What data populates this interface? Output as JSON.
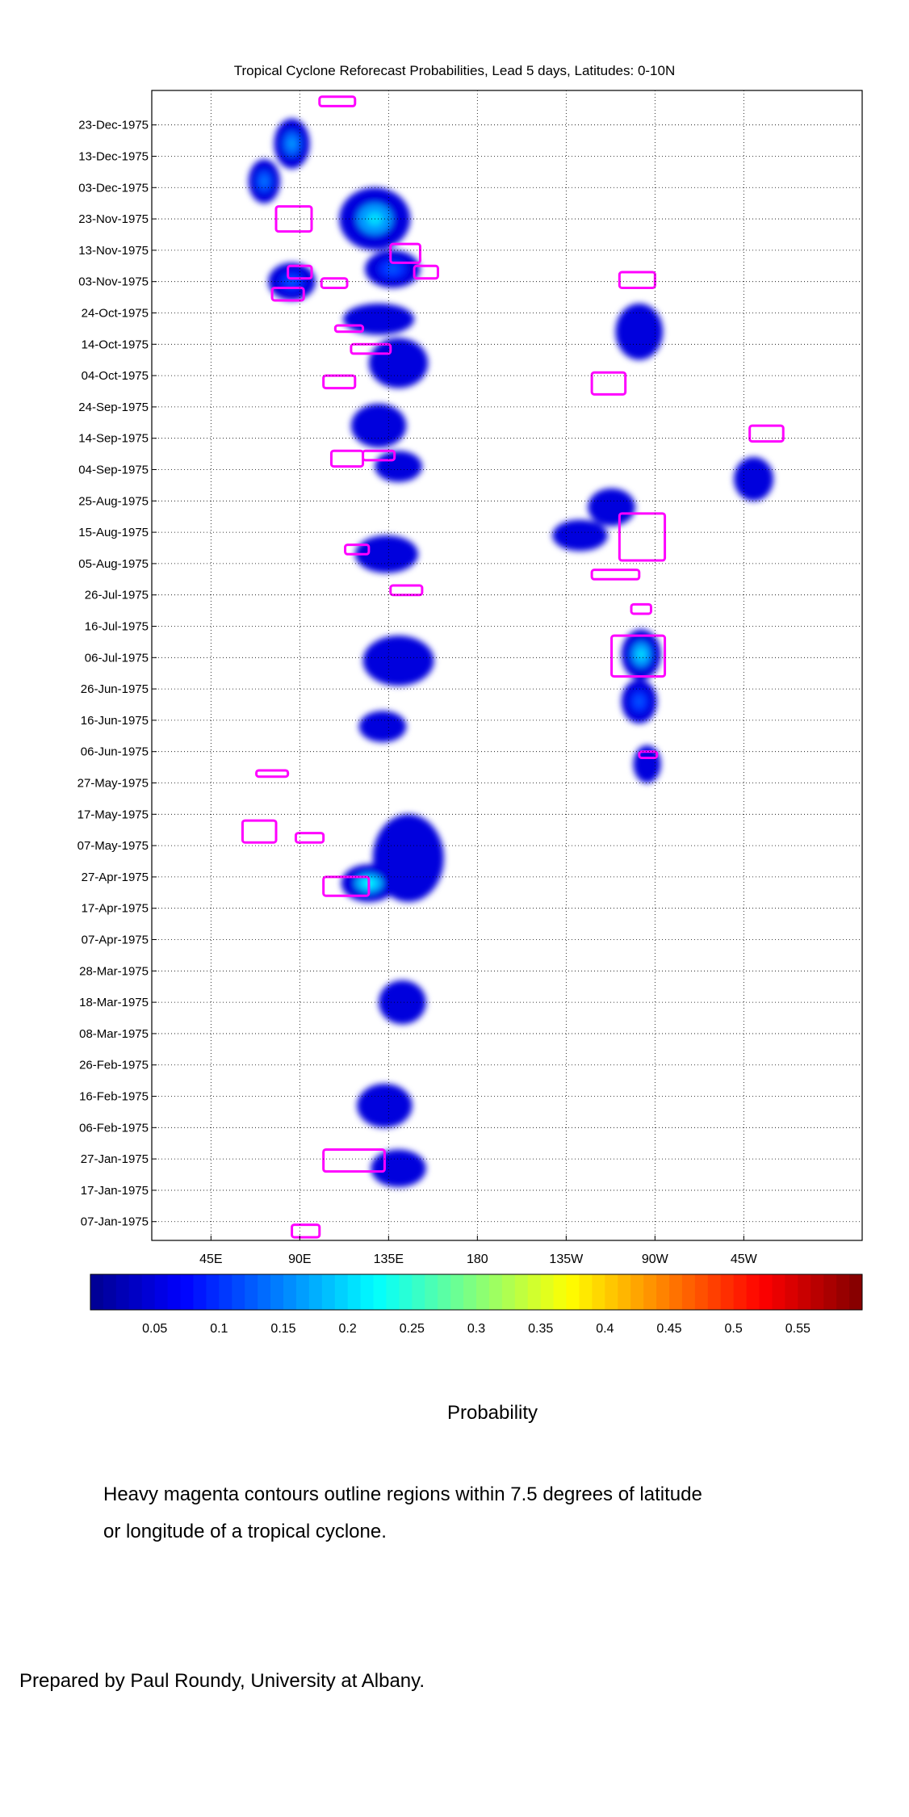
{
  "chart_data": {
    "type": "heatmap",
    "title": "Tropical Cyclone Reforecast Probabilities, Lead 5 days, Latitudes: 0-10N",
    "x_ticks": [
      "45E",
      "90E",
      "135E",
      "180",
      "135W",
      "90W",
      "45W"
    ],
    "y_ticks": [
      "23-Dec-1975",
      "13-Dec-1975",
      "03-Dec-1975",
      "23-Nov-1975",
      "13-Nov-1975",
      "03-Nov-1975",
      "24-Oct-1975",
      "14-Oct-1975",
      "04-Oct-1975",
      "24-Sep-1975",
      "14-Sep-1975",
      "04-Sep-1975",
      "25-Aug-1975",
      "15-Aug-1975",
      "05-Aug-1975",
      "26-Jul-1975",
      "16-Jul-1975",
      "06-Jul-1975",
      "26-Jun-1975",
      "16-Jun-1975",
      "06-Jun-1975",
      "27-May-1975",
      "17-May-1975",
      "07-May-1975",
      "27-Apr-1975",
      "17-Apr-1975",
      "07-Apr-1975",
      "28-Mar-1975",
      "18-Mar-1975",
      "08-Mar-1975",
      "26-Feb-1975",
      "16-Feb-1975",
      "06-Feb-1975",
      "27-Jan-1975",
      "17-Jan-1975",
      "07-Jan-1975"
    ],
    "grid": true,
    "colorbar": {
      "label": "Probability",
      "ticks": [
        "0.05",
        "0.1",
        "0.15",
        "0.2",
        "0.25",
        "0.3",
        "0.35",
        "0.4",
        "0.45",
        "0.5",
        "0.55"
      ],
      "range": [
        0,
        0.6
      ]
    },
    "probability_blobs": [
      {
        "lon": 86,
        "day": 350,
        "dlon": 9,
        "dday": 8,
        "p": 0.16
      },
      {
        "lon": 72,
        "day": 338,
        "dlon": 8,
        "dday": 7,
        "p": 0.14
      },
      {
        "lon": 86,
        "day": 306,
        "dlon": 12,
        "dday": 6,
        "p": 0.12
      },
      {
        "lon": 128,
        "day": 326,
        "dlon": 18,
        "dday": 10,
        "p": 0.2
      },
      {
        "lon": 137,
        "day": 310,
        "dlon": 14,
        "dday": 6,
        "p": 0.12
      },
      {
        "lon": 130,
        "day": 294,
        "dlon": 18,
        "dday": 5,
        "p": 0.08
      },
      {
        "lon": 140,
        "day": 280,
        "dlon": 15,
        "dday": 8,
        "p": 0.07
      },
      {
        "lon": 130,
        "day": 260,
        "dlon": 14,
        "dday": 7,
        "p": 0.07
      },
      {
        "lon": 140,
        "day": 247,
        "dlon": 12,
        "dday": 5,
        "p": 0.06
      },
      {
        "lon": 134,
        "day": 219,
        "dlon": 16,
        "dday": 6,
        "p": 0.07
      },
      {
        "lon": 140,
        "day": 185,
        "dlon": 18,
        "dday": 8,
        "p": 0.09
      },
      {
        "lon": 132,
        "day": 164,
        "dlon": 12,
        "dday": 5,
        "p": 0.06
      },
      {
        "lon": 145,
        "day": 122,
        "dlon": 18,
        "dday": 14,
        "p": 0.1
      },
      {
        "lon": 125,
        "day": 114,
        "dlon": 14,
        "dday": 6,
        "p": 0.22
      },
      {
        "lon": 142,
        "day": 76,
        "dlon": 12,
        "dday": 7,
        "p": 0.07
      },
      {
        "lon": 133,
        "day": 43,
        "dlon": 14,
        "dday": 7,
        "p": 0.07
      },
      {
        "lon": 140,
        "day": 23,
        "dlon": 14,
        "dday": 6,
        "p": 0.08
      },
      {
        "lon": 262,
        "day": 290,
        "dlon": 12,
        "dday": 9,
        "p": 0.08
      },
      {
        "lon": 248,
        "day": 234,
        "dlon": 12,
        "dday": 6,
        "p": 0.07
      },
      {
        "lon": 232,
        "day": 225,
        "dlon": 14,
        "dday": 5,
        "p": 0.08
      },
      {
        "lon": 263,
        "day": 187,
        "dlon": 10,
        "dday": 8,
        "p": 0.2
      },
      {
        "lon": 262,
        "day": 172,
        "dlon": 9,
        "dday": 7,
        "p": 0.12
      },
      {
        "lon": 266,
        "day": 152,
        "dlon": 7,
        "dday": 6,
        "p": 0.07
      },
      {
        "lon": 320,
        "day": 243,
        "dlon": 10,
        "dday": 7,
        "p": 0.06
      }
    ],
    "cyclone_contours": [
      {
        "lon": [
          100,
          118
        ],
        "day": [
          362,
          365
        ]
      },
      {
        "lon": [
          78,
          96
        ],
        "day": [
          322,
          330
        ]
      },
      {
        "lon": [
          136,
          151
        ],
        "day": [
          312,
          318
        ]
      },
      {
        "lon": [
          84,
          96
        ],
        "day": [
          307,
          311
        ]
      },
      {
        "lon": [
          101,
          114
        ],
        "day": [
          304,
          307
        ]
      },
      {
        "lon": [
          148,
          160
        ],
        "day": [
          307,
          311
        ]
      },
      {
        "lon": [
          76,
          92
        ],
        "day": [
          300,
          304
        ]
      },
      {
        "lon": [
          252,
          270
        ],
        "day": [
          304,
          309
        ]
      },
      {
        "lon": [
          108,
          122
        ],
        "day": [
          290,
          292
        ]
      },
      {
        "lon": [
          116,
          136
        ],
        "day": [
          283,
          286
        ]
      },
      {
        "lon": [
          102,
          118
        ],
        "day": [
          272,
          276
        ]
      },
      {
        "lon": [
          238,
          255
        ],
        "day": [
          270,
          277
        ]
      },
      {
        "lon": [
          318,
          335
        ],
        "day": [
          255,
          260
        ]
      },
      {
        "lon": [
          106,
          122
        ],
        "day": [
          247,
          252
        ]
      },
      {
        "lon": [
          122,
          138
        ],
        "day": [
          249,
          252
        ]
      },
      {
        "lon": [
          113,
          125
        ],
        "day": [
          219,
          222
        ]
      },
      {
        "lon": [
          252,
          275
        ],
        "day": [
          217,
          232
        ]
      },
      {
        "lon": [
          238,
          262
        ],
        "day": [
          211,
          214
        ]
      },
      {
        "lon": [
          136,
          152
        ],
        "day": [
          206,
          209
        ]
      },
      {
        "lon": [
          258,
          268
        ],
        "day": [
          200,
          203
        ]
      },
      {
        "lon": [
          248,
          275
        ],
        "day": [
          180,
          193
        ]
      },
      {
        "lon": [
          262,
          271
        ],
        "day": [
          154,
          156
        ]
      },
      {
        "lon": [
          68,
          84
        ],
        "day": [
          148,
          150
        ]
      },
      {
        "lon": [
          61,
          78
        ],
        "day": [
          127,
          134
        ]
      },
      {
        "lon": [
          88,
          102
        ],
        "day": [
          127,
          130
        ]
      },
      {
        "lon": [
          102,
          125
        ],
        "day": [
          110,
          116
        ]
      },
      {
        "lon": [
          102,
          133
        ],
        "day": [
          22,
          29
        ]
      },
      {
        "lon": [
          86,
          100
        ],
        "day": [
          1,
          5
        ]
      }
    ]
  },
  "colorbar_label": "Probability",
  "note_line1": "Heavy magenta contours outline regions within 7.5 degrees of latitude",
  "note_line2": "or longitude of a tropical cyclone.",
  "credit": "Prepared by Paul Roundy, University at Albany."
}
